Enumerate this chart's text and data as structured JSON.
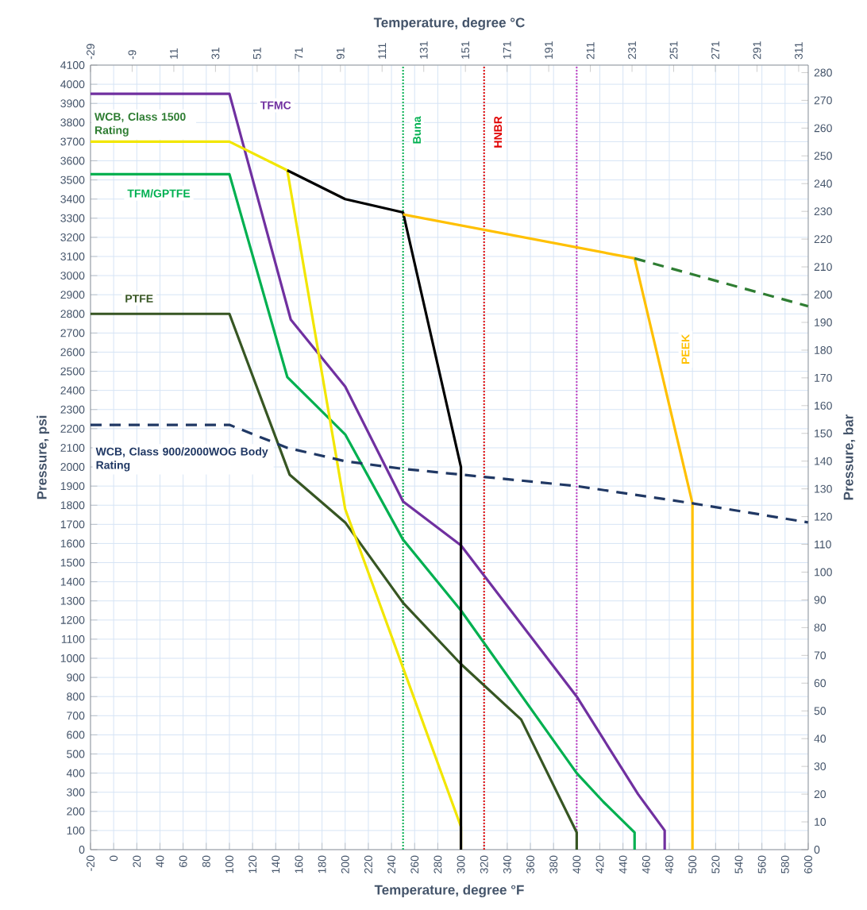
{
  "chart_data": {
    "type": "line",
    "xlabel": "Temperature, degree °F",
    "x2label": "Temperature, degree °C",
    "ylabel": "Pressure, psi",
    "y2label": "Pressure, bar",
    "xlim": [
      -20,
      600
    ],
    "ylim": [
      0,
      4100
    ],
    "x2lim": [
      -29,
      315.6
    ],
    "y2lim": [
      0,
      282.7
    ],
    "xticks": [
      -20,
      0,
      20,
      40,
      60,
      80,
      100,
      120,
      140,
      160,
      180,
      200,
      220,
      240,
      260,
      280,
      300,
      320,
      340,
      360,
      380,
      400,
      420,
      440,
      460,
      480,
      500,
      520,
      540,
      560,
      580,
      600
    ],
    "x2ticks": [
      -29,
      -9,
      11,
      31,
      51,
      71,
      91,
      111,
      131,
      151,
      171,
      191,
      211,
      231,
      251,
      271,
      291,
      311
    ],
    "yticks": [
      0,
      100,
      200,
      300,
      400,
      500,
      600,
      700,
      800,
      900,
      1000,
      1100,
      1200,
      1300,
      1400,
      1500,
      1600,
      1700,
      1800,
      1900,
      2000,
      2100,
      2200,
      2300,
      2400,
      2500,
      2600,
      2700,
      2800,
      2900,
      3000,
      3100,
      3200,
      3300,
      3400,
      3500,
      3600,
      3700,
      3800,
      3900,
      4000,
      4100
    ],
    "y2ticks": [
      0,
      10,
      20,
      30,
      40,
      50,
      60,
      70,
      80,
      90,
      100,
      110,
      120,
      130,
      140,
      150,
      160,
      170,
      180,
      190,
      200,
      210,
      220,
      230,
      240,
      250,
      260,
      270,
      280
    ],
    "grid": true,
    "ref_lines": [
      {
        "axis": "x",
        "value": 250,
        "label": "Buna",
        "color": "#00b050",
        "line_style": "dotted"
      },
      {
        "axis": "x",
        "value": 320,
        "label": "HNBR",
        "color": "#e00000",
        "line_style": "dotted"
      },
      {
        "axis": "x",
        "value": 400,
        "label": null,
        "color": "#c040c0",
        "line_style": "dotted"
      }
    ],
    "series": [
      {
        "name": "TFMC",
        "color": "#7030a0",
        "x": [
          -20,
          100,
          153,
          200,
          250,
          300,
          400,
          453,
          476,
          476
        ],
        "values": [
          3950,
          3950,
          2770,
          2420,
          1820,
          1590,
          800,
          290,
          100,
          0
        ]
      },
      {
        "name": "TFM/GPTFE",
        "color": "#00b050",
        "x": [
          -20,
          100,
          150,
          200,
          250,
          300,
          400,
          423,
          450,
          450
        ],
        "values": [
          3530,
          3530,
          2470,
          2170,
          1620,
          1250,
          400,
          250,
          90,
          0
        ]
      },
      {
        "name": "PTFE",
        "color": "#375623",
        "x": [
          -20,
          100,
          152,
          200,
          250,
          300,
          352,
          400,
          400
        ],
        "values": [
          2800,
          2800,
          1960,
          1710,
          1290,
          970,
          680,
          90,
          0
        ]
      },
      {
        "color": "#f2e600",
        "x": [
          -20,
          100,
          150,
          200,
          300,
          300
        ],
        "values": [
          3700,
          3700,
          3550,
          1780,
          120,
          0
        ]
      },
      {
        "color": "#000000",
        "x": [
          150,
          200,
          250,
          300,
          300
        ],
        "values": [
          3550,
          3400,
          3330,
          2000,
          0
        ]
      },
      {
        "name": "PEEK",
        "color": "#ffc000",
        "x": [
          250,
          450,
          500,
          500
        ],
        "values": [
          3320,
          3090,
          1810,
          0
        ]
      },
      {
        "name": "WCB, Class 1500 Rating",
        "color": "#2e7d32",
        "line_style": "dashed",
        "x": [
          450,
          600
        ],
        "values": [
          3090,
          2840
        ]
      },
      {
        "name": "WCB, Class 900/2000WOG Body Rating",
        "color": "#203864",
        "line_style": "dashed",
        "x": [
          -20,
          100,
          150,
          200,
          250,
          400,
          500,
          600
        ],
        "values": [
          2220,
          2220,
          2100,
          2030,
          1990,
          1900,
          1810,
          1710
        ]
      }
    ]
  }
}
